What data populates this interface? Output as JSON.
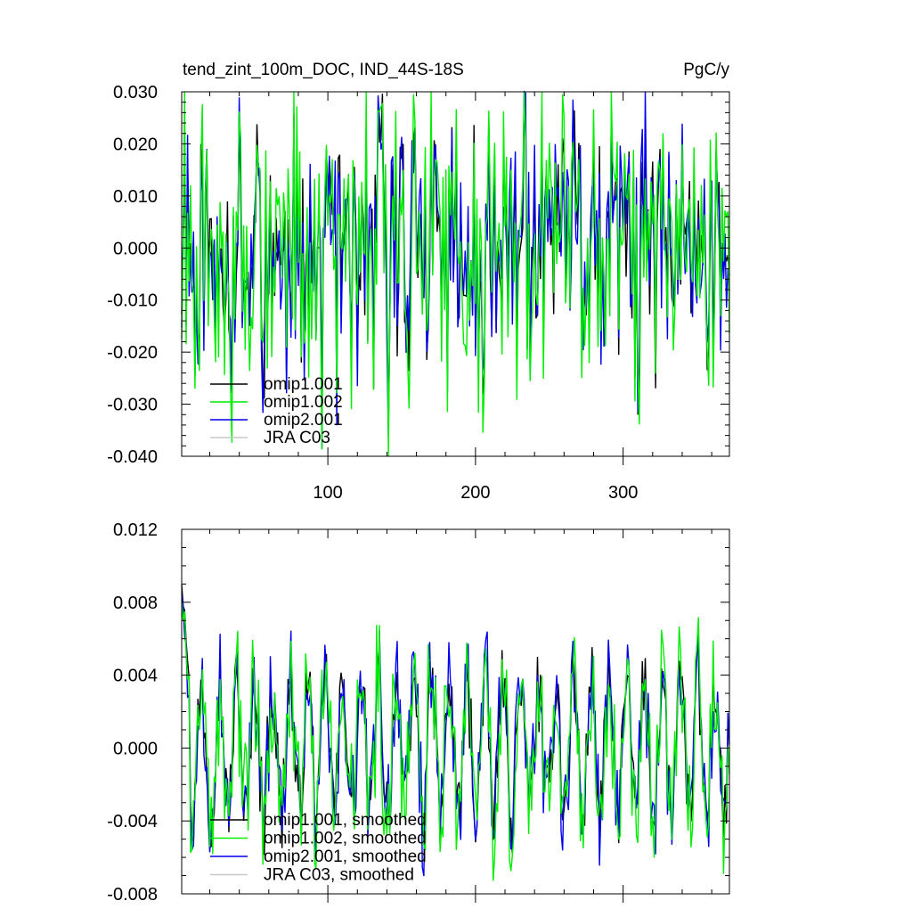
{
  "page": {
    "title": "tend_zint_100m_DOC, IND_44S-18S",
    "units": "PgC/y"
  },
  "chart_data": [
    {
      "type": "line",
      "title": "tend_zint_100m_DOC, IND_44S-18S",
      "units_label": "PgC/y",
      "xlim": [
        1,
        372
      ],
      "ylim": [
        -0.04,
        0.03
      ],
      "xticks_major": [
        100,
        200,
        300
      ],
      "xtick_labels": [
        "100",
        "200",
        "300"
      ],
      "yticks": [
        -0.04,
        -0.03,
        -0.02,
        -0.01,
        0.0,
        0.01,
        0.02,
        0.03
      ],
      "ytick_labels": [
        "-0.040",
        "-0.030",
        "-0.020",
        "-0.010",
        "0.000",
        "0.010",
        "0.020",
        "0.030"
      ],
      "legend_position": "bottom-left",
      "legend": [
        "omip1.001",
        "omip1.002",
        "omip2.001",
        "JRA C03"
      ],
      "series": [
        {
          "name": "omip1.001",
          "color": "#000000",
          "visible": true
        },
        {
          "name": "omip1.002",
          "color": "#00ee00",
          "visible": true
        },
        {
          "name": "omip2.001",
          "color": "#0000ee",
          "visible": true
        },
        {
          "name": "JRA C03",
          "color": "#c8c8c8",
          "visible": false
        }
      ],
      "signal": {
        "n": 372,
        "mean": 0.0,
        "amplitude": 0.028,
        "min": -0.039,
        "max": 0.03
      }
    },
    {
      "type": "line",
      "xlim": [
        1,
        372
      ],
      "ylim": [
        -0.008,
        0.012
      ],
      "xticks_major": [
        100,
        200,
        300
      ],
      "yticks": [
        -0.008,
        -0.004,
        0.0,
        0.004,
        0.008,
        0.012
      ],
      "ytick_labels": [
        "-0.008",
        "-0.004",
        "0.000",
        "0.004",
        "0.008",
        "0.012"
      ],
      "legend_position": "bottom-left",
      "legend": [
        "omip1.001, smoothed",
        "omip1.002, smoothed",
        "omip2.001, smoothed",
        "JRA C03, smoothed"
      ],
      "series": [
        {
          "name": "omip1.001, smoothed",
          "color": "#000000",
          "visible": true
        },
        {
          "name": "omip1.002, smoothed",
          "color": "#00ee00",
          "visible": true
        },
        {
          "name": "omip2.001, smoothed",
          "color": "#0000ee",
          "visible": true
        },
        {
          "name": "JRA C03, smoothed",
          "color": "#c8c8c8",
          "visible": false
        }
      ],
      "signal": {
        "n": 372,
        "mean": 0.0,
        "amplitude": 0.006,
        "start_value": 0.0098,
        "min": -0.0073,
        "max": 0.0098
      }
    }
  ]
}
